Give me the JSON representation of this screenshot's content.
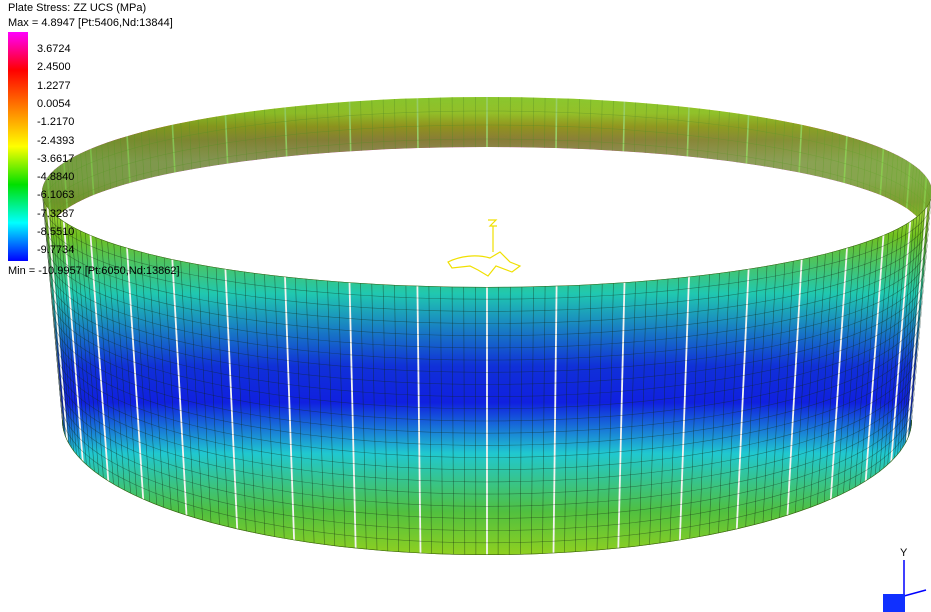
{
  "legend": {
    "title": "Plate Stress: ZZ UCS (MPa)",
    "max_label": "Max = 4.8947 [Pt:5406,Nd:13844]",
    "min_label": "Min = -10.9957 [Pt:6050,Nd:13862]",
    "ticks": [
      "3.6724",
      "2.4500",
      "1.2277",
      "0.0054",
      "-1.2170",
      "-2.4393",
      "-3.6617",
      "-4.8840",
      "-6.1063",
      "-7.3287",
      "-8.5510",
      "-9.7734"
    ],
    "colors": [
      "#ff00ff",
      "#ff0000",
      "#ff7f00",
      "#ffff00",
      "#00e000",
      "#00ffff",
      "#0000ff"
    ]
  },
  "axes": {
    "y_label": "Y"
  },
  "colors": {
    "high": "#e000e0",
    "red": "#d00000",
    "yellow": "#e8f040",
    "green": "#7fc000",
    "cyan": "#20d0d0",
    "blue": "#1020e0"
  }
}
